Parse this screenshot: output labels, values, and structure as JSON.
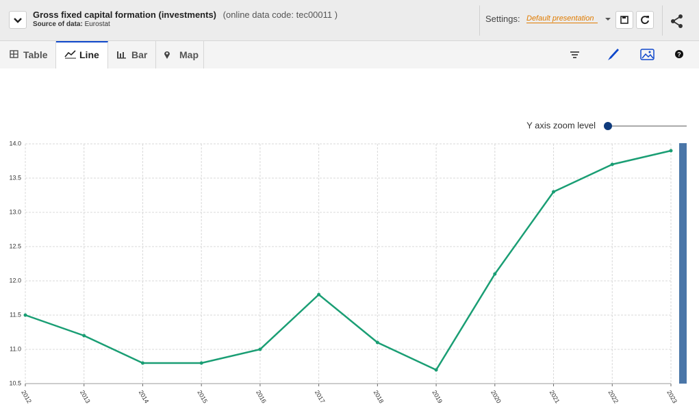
{
  "header": {
    "title": "Gross fixed capital formation (investments)",
    "code": "(online data code: tec00011 )",
    "source_label": "Source of data:",
    "source": "Eurostat",
    "settings_label": "Settings:",
    "presentation": "Default presentation"
  },
  "tabs": [
    "Table",
    "Line",
    "Bar",
    "Map"
  ],
  "zoom_label": "Y axis zoom level",
  "chart_data": {
    "type": "line",
    "categories": [
      "2012",
      "2013",
      "2014",
      "2015",
      "2016",
      "2017",
      "2018",
      "2019",
      "2020",
      "2021",
      "2022",
      "2023"
    ],
    "values": [
      11.5,
      11.2,
      10.8,
      10.8,
      11.0,
      11.8,
      11.1,
      10.7,
      12.1,
      13.3,
      13.7,
      13.9
    ],
    "color": "#1a9e74",
    "ylim": [
      10.5,
      14.0
    ],
    "yticks": [
      10.5,
      {
        "value": 11.0,
        "label": "11.0"
      },
      11.5,
      {
        "value": 12.0,
        "label": "12.0"
      },
      12.5,
      {
        "value": 13.0,
        "label": "13.0"
      },
      13.5,
      {
        "value": 14.0,
        "label": "14.0"
      }
    ],
    "grid": true
  }
}
